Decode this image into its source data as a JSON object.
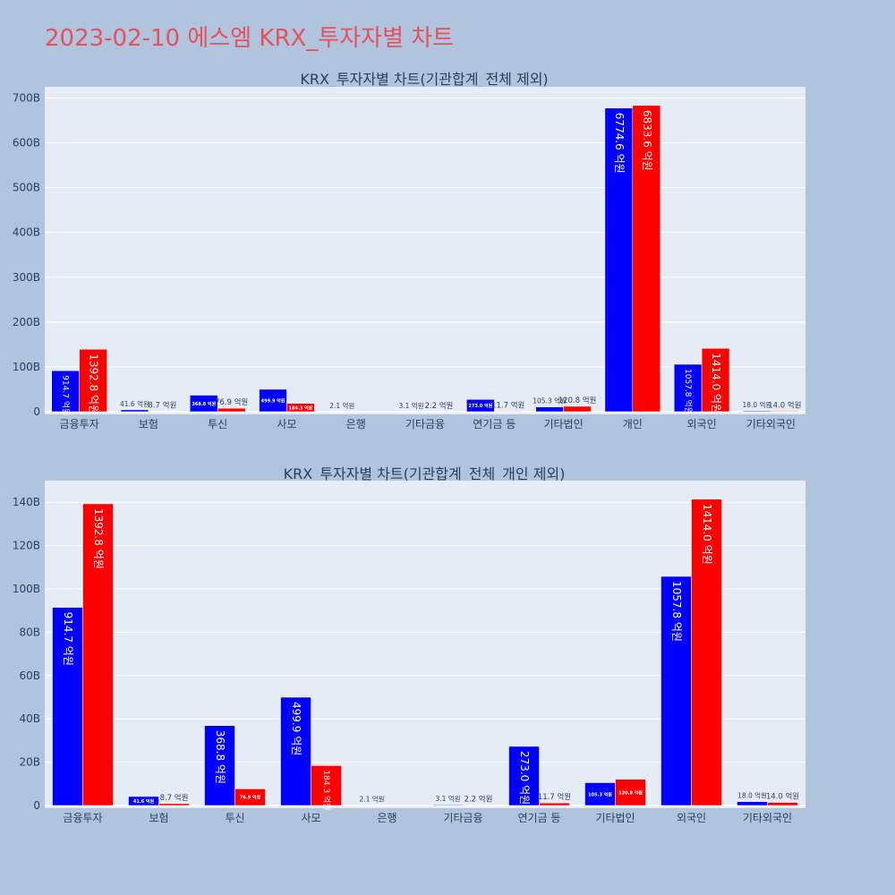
{
  "page": {
    "title": "2023-02-10 에스엠 KRX_투자자별 차트"
  },
  "colors": {
    "background": "#b0c4de",
    "plot_bg": "#e5ecf6",
    "buy": "#0000ff",
    "sell": "#ff0000",
    "title": "#e8505b"
  },
  "chart_data": [
    {
      "type": "bar",
      "title": "KRX_투자자별 차트(기관합계_전체 제외)",
      "categories": [
        "금융투자",
        "보험",
        "투신",
        "사모",
        "은행",
        "기타금융",
        "연기금 등",
        "기타법인",
        "개인",
        "외국인",
        "기타외국인"
      ],
      "series": [
        {
          "values": [
            91.47,
            4.16,
            36.88,
            49.99,
            0.21,
            0.31,
            27.3,
            10.53,
            677.46,
            105.78,
            1.8
          ],
          "labels": [
            "914.7 억원",
            "41.6 억원",
            "368.8 억원",
            "499.9 억원",
            "2.1 억원",
            "3.1 억원",
            "273.0 억원",
            "105.3 억원",
            "6774.6 억원",
            "1057.8 억원",
            "18.0 억원"
          ]
        },
        {
          "values": [
            139.28,
            0.87,
            7.69,
            18.43,
            0,
            0.22,
            1.17,
            12.08,
            683.36,
            141.4,
            1.4
          ],
          "labels": [
            "1392.8 억원",
            "8.7 억원",
            "76.9 억원",
            "184.3 억원",
            "",
            "2.2 억원",
            "11.7 억원",
            "120.8 억원",
            "6833.6 억원",
            "1414.0 억원",
            "14.0 억원"
          ]
        }
      ],
      "yticks": [
        0,
        100,
        200,
        300,
        400,
        500,
        600,
        700
      ],
      "ytick_labels": [
        "0",
        "100B",
        "200B",
        "300B",
        "400B",
        "500B",
        "600B",
        "700B"
      ],
      "ylim": [
        0,
        725
      ],
      "grid": true
    },
    {
      "type": "bar",
      "title": "KRX_투자자별 차트(기관합계_전체_개인 제외)",
      "categories": [
        "금융투자",
        "보험",
        "투신",
        "사모",
        "은행",
        "기타금융",
        "연기금 등",
        "기타법인",
        "외국인",
        "기타외국인"
      ],
      "series": [
        {
          "values": [
            91.47,
            4.16,
            36.88,
            49.99,
            0.21,
            0.31,
            27.3,
            10.53,
            105.78,
            1.8
          ],
          "labels": [
            "914.7 억원",
            "41.6 억원",
            "368.8 억원",
            "499.9 억원",
            "2.1 억원",
            "3.1 억원",
            "273.0 억원",
            "105.3 억원",
            "1057.8 억원",
            "18.0 억원"
          ]
        },
        {
          "values": [
            139.28,
            0.87,
            7.69,
            18.43,
            0,
            0.22,
            1.17,
            12.08,
            141.4,
            1.4
          ],
          "labels": [
            "1392.8 억원",
            "8.7 억원",
            "76.9 억원",
            "184.3 억원",
            "",
            "2.2 억원",
            "11.7 억원",
            "120.8 억원",
            "1414.0 억원",
            "14.0 억원"
          ]
        }
      ],
      "yticks": [
        0,
        20,
        40,
        60,
        80,
        100,
        120,
        140
      ],
      "ytick_labels": [
        "0",
        "20B",
        "40B",
        "60B",
        "80B",
        "100B",
        "120B",
        "140B"
      ],
      "ylim": [
        0,
        150
      ],
      "grid": true
    }
  ]
}
